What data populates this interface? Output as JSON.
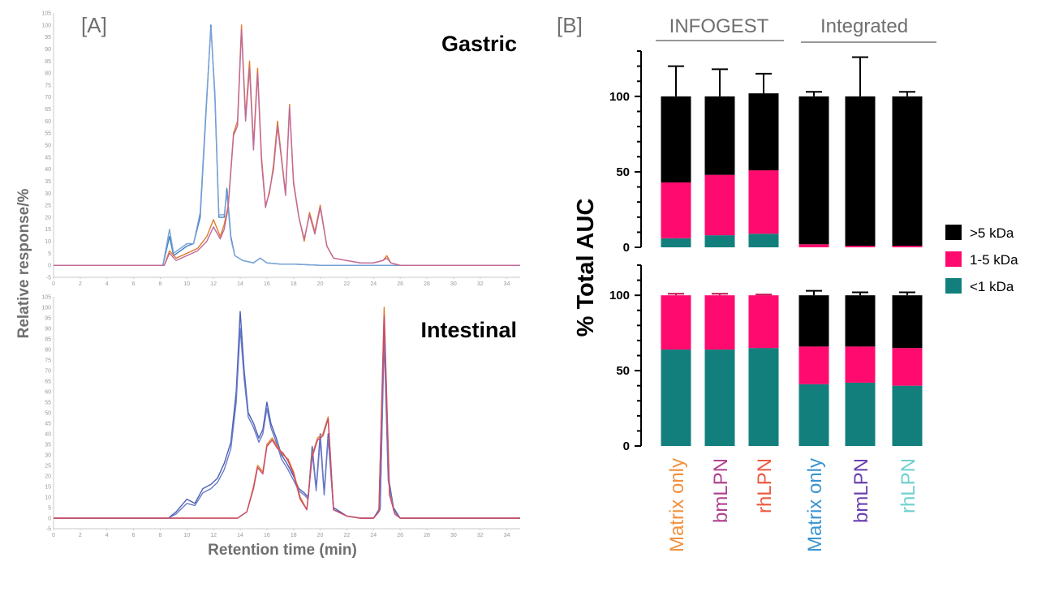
{
  "panel_a": {
    "letter": "[A]",
    "y_axis_label": "Relative response/%",
    "x_axis_label": "Retention time (min)",
    "x_ticks": [
      "0",
      "2",
      "4",
      "6",
      "8",
      "10",
      "12",
      "14",
      "16",
      "18",
      "20",
      "22",
      "24",
      "26",
      "28",
      "30",
      "32",
      "34"
    ],
    "y_ticks": [
      "-5",
      "0",
      "5",
      "10",
      "15",
      "20",
      "25",
      "30",
      "35",
      "40",
      "45",
      "50",
      "55",
      "60",
      "65",
      "70",
      "75",
      "80",
      "85",
      "90",
      "95",
      "100",
      "105"
    ]
  },
  "panel_b": {
    "letter": "[B]",
    "y_axis_label": "% Total AUC",
    "group_labels": [
      "INFOGEST",
      "Integrated"
    ],
    "legend": [
      {
        "label": ">5 kDa",
        "color": "#000000"
      },
      {
        "label": "1-5 kDa",
        "color": "#ff0a6e"
      },
      {
        "label": "<1 kDa",
        "color": "#137f7c"
      }
    ],
    "categories": [
      {
        "label": "Matrix only",
        "color": "#f0913e"
      },
      {
        "label": "bmLPN",
        "color": "#b04390"
      },
      {
        "label": "rhLPN",
        "color": "#ec5a41"
      },
      {
        "label": "Matrix only",
        "color": "#3a94d2"
      },
      {
        "label": "bmLPN",
        "color": "#6a3fb0"
      },
      {
        "label": "rhLPN",
        "color": "#6fd0cf"
      }
    ]
  },
  "chart_data": [
    {
      "type": "line",
      "title": "Gastric",
      "xlabel": "Retention time (min)",
      "ylabel": "Relative response/%",
      "xlim": [
        0,
        35
      ],
      "ylim": [
        -5,
        105
      ],
      "series": [
        {
          "color": "#3a80c0",
          "x": [
            0,
            8.2,
            8.7,
            9.0,
            9.5,
            10,
            10.5,
            11,
            11.4,
            11.8,
            12.1,
            12.4,
            12.8,
            13.0,
            13.3,
            13.6,
            14.2,
            15,
            15.5,
            16,
            17,
            18,
            20,
            22,
            25,
            35
          ],
          "y": [
            0,
            0,
            12,
            4,
            6,
            8,
            9,
            20,
            60,
            100,
            70,
            20,
            20,
            32,
            12,
            4,
            2,
            1,
            3,
            1,
            0.5,
            0.5,
            0,
            0,
            0,
            0
          ]
        },
        {
          "color": "#7aa2d6",
          "x": [
            0,
            8.2,
            8.7,
            9.0,
            9.5,
            10,
            10.5,
            11,
            11.4,
            11.8,
            12.1,
            12.4,
            12.8,
            13.0,
            13.3,
            13.6,
            14.2,
            15,
            15.5,
            16,
            17,
            18,
            20,
            22,
            25,
            35
          ],
          "y": [
            0,
            0,
            15,
            5,
            7,
            9,
            9,
            22,
            62,
            99,
            72,
            21,
            21,
            30,
            11,
            4,
            2,
            1,
            3,
            1,
            0.5,
            0.5,
            0,
            0,
            0,
            0
          ]
        },
        {
          "color": "#e07b2a",
          "x": [
            0,
            8.3,
            8.7,
            9.2,
            10,
            10.8,
            11.5,
            12,
            12.5,
            12.8,
            13.1,
            13.5,
            13.8,
            14.1,
            14.4,
            14.7,
            15.0,
            15.3,
            15.6,
            15.9,
            16.2,
            16.5,
            16.8,
            17.1,
            17.4,
            17.7,
            18.0,
            18.4,
            18.8,
            19.2,
            19.6,
            20.0,
            20.5,
            21,
            22,
            23,
            24,
            24.7,
            25,
            25.3,
            26,
            35
          ],
          "y": [
            0,
            0,
            6,
            3,
            5,
            7,
            12,
            19,
            12,
            17,
            25,
            55,
            60,
            100,
            62,
            85,
            50,
            82,
            45,
            25,
            30,
            42,
            60,
            45,
            30,
            67,
            35,
            20,
            10,
            22,
            14,
            25,
            8,
            3,
            2,
            1,
            1,
            2,
            4,
            1,
            0,
            0
          ]
        },
        {
          "color": "#c06a9e",
          "x": [
            0,
            8.3,
            8.7,
            9.2,
            10,
            10.8,
            11.5,
            12,
            12.5,
            12.8,
            13.1,
            13.5,
            13.8,
            14.1,
            14.4,
            14.7,
            15.0,
            15.3,
            15.6,
            15.9,
            16.2,
            16.5,
            16.8,
            17.1,
            17.4,
            17.7,
            18.0,
            18.4,
            18.8,
            19.2,
            19.6,
            20.0,
            20.5,
            21,
            22,
            23,
            24,
            24.7,
            25,
            25.3,
            26,
            35
          ],
          "y": [
            0,
            0,
            5,
            2,
            4,
            6,
            10,
            16,
            11,
            15,
            24,
            54,
            58,
            98,
            60,
            82,
            48,
            80,
            43,
            24,
            31,
            40,
            58,
            44,
            29,
            66,
            34,
            20,
            11,
            21,
            13,
            24,
            8,
            3,
            2,
            1,
            1,
            2,
            3,
            1,
            0,
            0
          ]
        }
      ]
    },
    {
      "type": "line",
      "title": "Intestinal",
      "xlabel": "Retention time (min)",
      "ylabel": "Relative response/%",
      "xlim": [
        0,
        35
      ],
      "ylim": [
        -5,
        105
      ],
      "series": [
        {
          "color": "#4a5fb5",
          "x": [
            0,
            8.6,
            9.2,
            10,
            10.6,
            11.2,
            11.8,
            12.3,
            12.8,
            13.3,
            13.7,
            14.0,
            14.3,
            14.6,
            15.0,
            15.4,
            15.7,
            16.0,
            16.3,
            16.7,
            17.1,
            17.5,
            18.0,
            18.4,
            18.8,
            19.1,
            19.4,
            19.7,
            20.0,
            20.3,
            20.6,
            21,
            22,
            23,
            24,
            24.5,
            24.8,
            25.1,
            25.5,
            26,
            35
          ],
          "y": [
            0,
            0,
            3,
            9,
            7,
            14,
            16,
            19,
            26,
            36,
            60,
            98,
            70,
            50,
            45,
            38,
            42,
            55,
            45,
            38,
            30,
            26,
            20,
            14,
            12,
            10,
            34,
            14,
            40,
            12,
            40,
            5,
            1,
            0,
            0,
            5,
            90,
            20,
            5,
            0,
            0
          ]
        },
        {
          "color": "#6b7ac8",
          "x": [
            0,
            8.6,
            9.2,
            10,
            10.6,
            11.2,
            11.8,
            12.3,
            12.8,
            13.3,
            13.7,
            14.0,
            14.3,
            14.6,
            15.0,
            15.4,
            15.7,
            16.0,
            16.3,
            16.7,
            17.1,
            17.5,
            18.0,
            18.4,
            18.8,
            19.1,
            19.4,
            19.7,
            20.0,
            20.3,
            20.6,
            21,
            22,
            23,
            24,
            24.5,
            24.8,
            25.1,
            25.5,
            26,
            35
          ],
          "y": [
            0,
            0,
            2,
            7,
            6,
            12,
            14,
            17,
            23,
            33,
            55,
            90,
            66,
            48,
            43,
            36,
            40,
            52,
            43,
            36,
            28,
            24,
            18,
            13,
            11,
            9,
            32,
            13,
            37,
            11,
            38,
            4,
            1,
            0,
            0,
            4,
            85,
            18,
            4,
            0,
            0
          ]
        },
        {
          "color": "#e07b2a",
          "x": [
            0,
            13.8,
            14.5,
            15.0,
            15.3,
            15.7,
            16.0,
            16.4,
            16.8,
            17.2,
            17.6,
            18.0,
            18.5,
            19.0,
            19.4,
            19.8,
            20.2,
            20.6,
            21,
            22,
            23,
            24,
            24.4,
            24.8,
            25.2,
            25.6,
            26,
            35
          ],
          "y": [
            0,
            0,
            3,
            15,
            25,
            22,
            35,
            38,
            34,
            30,
            28,
            22,
            10,
            4,
            30,
            38,
            40,
            48,
            4,
            1,
            0,
            0,
            3,
            100,
            12,
            2,
            0,
            0
          ]
        },
        {
          "color": "#c94a6e",
          "x": [
            0,
            13.8,
            14.5,
            15.0,
            15.3,
            15.7,
            16.0,
            16.4,
            16.8,
            17.2,
            17.6,
            18.0,
            18.5,
            19.0,
            19.4,
            19.8,
            20.2,
            20.6,
            21,
            22,
            23,
            24,
            24.4,
            24.8,
            25.2,
            25.6,
            26,
            35
          ],
          "y": [
            0,
            0,
            3,
            14,
            24,
            21,
            34,
            37,
            33,
            31,
            27,
            21,
            9,
            4,
            29,
            37,
            39,
            47,
            4,
            1,
            0,
            0,
            3,
            96,
            11,
            2,
            0,
            0
          ]
        }
      ]
    },
    {
      "type": "bar",
      "stacked": true,
      "ylabel": "% Total AUC",
      "ylim": [
        0,
        130
      ],
      "y_ticks": [
        0,
        50,
        100
      ],
      "categories": [
        "Matrix only",
        "bmLPN",
        "rhLPN",
        "Matrix only",
        "bmLPN",
        "rhLPN"
      ],
      "series": [
        {
          "name": "<1 kDa",
          "color": "#137f7c",
          "values": [
            6,
            8,
            9,
            0,
            0,
            0
          ],
          "errors": [
            1,
            3,
            2,
            0,
            0,
            0
          ]
        },
        {
          "name": "1-5 kDa",
          "color": "#ff0a6e",
          "values": [
            37,
            40,
            42,
            2,
            1,
            1
          ],
          "errors": [
            6,
            11,
            11,
            0,
            0,
            0
          ]
        },
        {
          "name": ">5 kDa",
          "color": "#000000",
          "values": [
            57,
            52,
            51,
            98,
            99,
            99
          ],
          "errors": [
            20,
            18,
            13,
            3,
            26,
            3
          ]
        }
      ]
    },
    {
      "type": "bar",
      "stacked": true,
      "ylabel": "% Total AUC",
      "ylim": [
        0,
        120
      ],
      "y_ticks": [
        0,
        50,
        100
      ],
      "categories": [
        "Matrix only",
        "bmLPN",
        "rhLPN",
        "Matrix only",
        "bmLPN",
        "rhLPN"
      ],
      "series": [
        {
          "name": "<1 kDa",
          "color": "#137f7c",
          "values": [
            64,
            64,
            65,
            41,
            42,
            40
          ],
          "errors": [
            1,
            1,
            0.5,
            2,
            1,
            2
          ]
        },
        {
          "name": "1-5 kDa",
          "color": "#ff0a6e",
          "values": [
            36,
            36,
            35,
            25,
            24,
            25
          ],
          "errors": [
            1,
            1,
            0.5,
            2,
            1,
            4
          ]
        },
        {
          "name": ">5 kDa",
          "color": "#000000",
          "values": [
            0,
            0,
            0,
            34,
            34,
            35
          ],
          "errors": [
            0,
            0,
            0,
            3,
            2,
            2
          ]
        }
      ]
    }
  ]
}
